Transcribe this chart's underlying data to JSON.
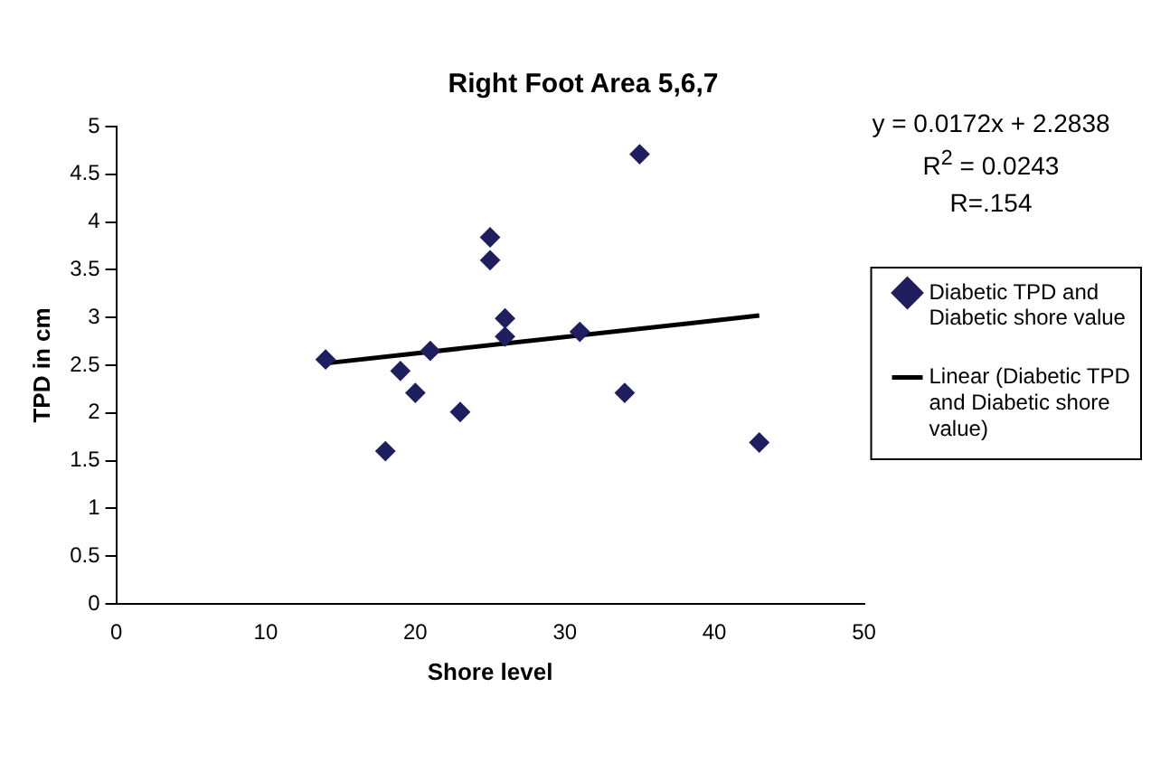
{
  "chart_data": {
    "type": "scatter",
    "title": "Right Foot Area 5,6,7",
    "xlabel": "Shore level",
    "ylabel": "TPD in cm",
    "annotations": [
      "y = 0.0172x + 2.2838",
      "R$^{2}$ = 0.0243",
      "R=.154"
    ],
    "series": [
      {
        "name": "Diabetic TPD and Diabetic shore value",
        "color": "#1f1f5f",
        "marker": "diamond",
        "x": [
          14,
          18,
          19,
          20,
          21,
          23,
          25,
          25,
          26,
          26,
          31,
          34,
          35,
          43
        ],
        "values": [
          2.56,
          1.6,
          2.44,
          2.21,
          2.65,
          2.01,
          3.84,
          3.6,
          2.99,
          2.8,
          2.85,
          2.21,
          4.71,
          1.69
        ]
      },
      {
        "name": "Linear (Diabetic TPD and Diabetic shore value)",
        "type": "line",
        "color": "#000000",
        "marker": "none",
        "line_style": "solid",
        "x": [
          14,
          43
        ],
        "values": [
          2.52,
          3.02
        ]
      }
    ],
    "xlim": [
      0,
      50
    ],
    "xticks": [
      0,
      10,
      20,
      30,
      40,
      50
    ],
    "ylim": [
      0,
      5
    ],
    "yticks": [
      0,
      0.5,
      1,
      1.5,
      2,
      2.5,
      3,
      3.5,
      4,
      4.5,
      5
    ],
    "grid": false,
    "legend": "right"
  }
}
